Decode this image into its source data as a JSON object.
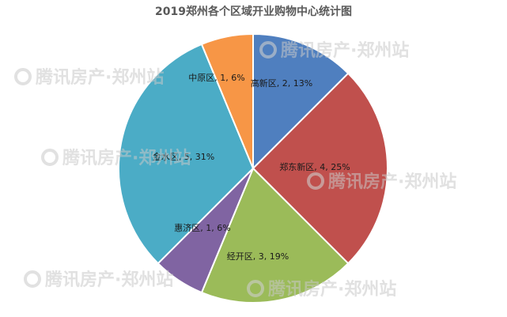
{
  "chart_data": {
    "type": "pie",
    "title": "2019郑州各个区域开业购物中心统计图",
    "slices": [
      {
        "label": "高新区, 2, 13%",
        "category": "高新区",
        "value": 2,
        "percent": 13,
        "color": "#4f7fbf"
      },
      {
        "label": "郑东新区, 4, 25%",
        "category": "郑东新区",
        "value": 4,
        "percent": 25,
        "color": "#c0504d"
      },
      {
        "label": "经开区, 3, 19%",
        "category": "经开区",
        "value": 3,
        "percent": 19,
        "color": "#9bbb59"
      },
      {
        "label": "惠济区, 1, 6%",
        "category": "惠济区",
        "value": 1,
        "percent": 6,
        "color": "#8064a2"
      },
      {
        "label": "金水区, 5, 31%",
        "category": "金水区",
        "value": 5,
        "percent": 31,
        "color": "#4bacc6"
      },
      {
        "label": "中原区, 1, 6%",
        "category": "中原区",
        "value": 1,
        "percent": 6,
        "color": "#f79646"
      }
    ]
  },
  "watermark": {
    "text": "腾讯房产·郑州站",
    "icon": "tencent-house-logo-icon"
  }
}
